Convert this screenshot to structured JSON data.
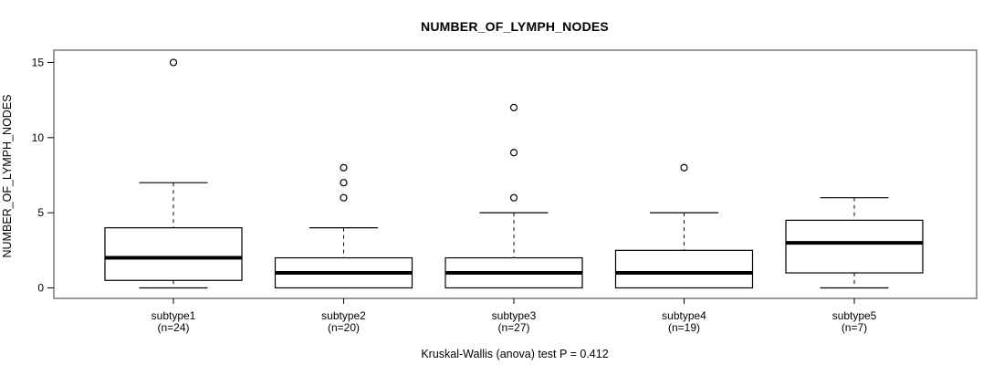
{
  "chart_data": {
    "type": "boxplot",
    "title": "NUMBER_OF_LYMPH_NODES",
    "ylabel": "NUMBER_OF_LYMPH_NODES",
    "xlabel": "",
    "caption": "Kruskal-Wallis (anova) test P = 0.412",
    "y_ticks": [
      0,
      5,
      10,
      15
    ],
    "ylim": [
      -0.6,
      15.6
    ],
    "grid": false,
    "legend": "none",
    "groups": [
      {
        "label": "subtype1",
        "n_label": "(n=24)",
        "n": 24,
        "whisker_low": 0,
        "q1": 0.5,
        "median": 2,
        "q3": 4,
        "whisker_high": 7,
        "outliers": [
          15
        ]
      },
      {
        "label": "subtype2",
        "n_label": "(n=20)",
        "n": 20,
        "whisker_low": 0,
        "q1": 0,
        "median": 1,
        "q3": 2,
        "whisker_high": 4,
        "outliers": [
          6,
          7,
          8
        ]
      },
      {
        "label": "subtype3",
        "n_label": "(n=27)",
        "n": 27,
        "whisker_low": 0,
        "q1": 0,
        "median": 1,
        "q3": 2,
        "whisker_high": 5,
        "outliers": [
          6,
          9,
          12
        ]
      },
      {
        "label": "subtype4",
        "n_label": "(n=19)",
        "n": 19,
        "whisker_low": 0,
        "q1": 0,
        "median": 1,
        "q3": 2.5,
        "whisker_high": 5,
        "outliers": [
          8
        ]
      },
      {
        "label": "subtype5",
        "n_label": "(n=7)",
        "n": 7,
        "whisker_low": 0,
        "q1": 1,
        "median": 3,
        "q3": 4.5,
        "whisker_high": 6,
        "outliers": []
      }
    ],
    "colors": {
      "background": "#ffffff",
      "frame": "#6f6f6f",
      "line": "#000000",
      "box_fill": "#ffffff",
      "text": "#000000"
    }
  }
}
